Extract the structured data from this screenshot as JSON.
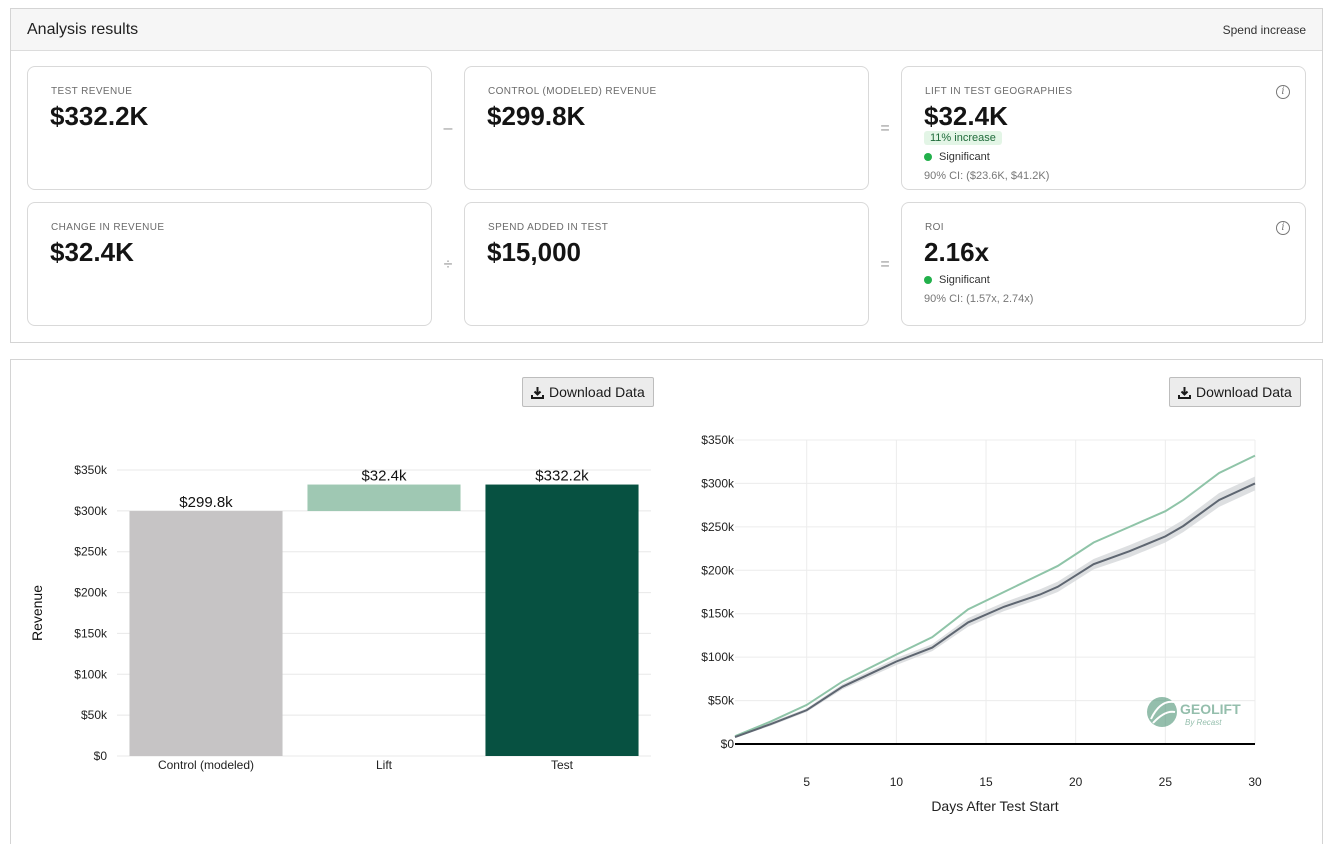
{
  "header": {
    "title": "Analysis results",
    "right_label": "Spend increase"
  },
  "cards": {
    "test_revenue": {
      "label": "TEST REVENUE",
      "value": "$332.2K"
    },
    "control_revenue": {
      "label": "CONTROL (MODELED) REVENUE",
      "value": "$299.8K"
    },
    "lift": {
      "label": "LIFT IN TEST GEOGRAPHIES",
      "value": "$32.4K",
      "badge": "11% increase",
      "significance": "Significant",
      "ci": "90% CI: ($23.6K, $41.2K)"
    },
    "change_revenue": {
      "label": "CHANGE IN REVENUE",
      "value": "$32.4K"
    },
    "spend_added": {
      "label": "SPEND ADDED IN TEST",
      "value": "$15,000"
    },
    "roi": {
      "label": "ROI",
      "value": "2.16x",
      "significance": "Significant",
      "ci": "90% CI: (1.57x, 2.74x)"
    }
  },
  "operators": {
    "minus": "–",
    "divide": "÷",
    "equals": "="
  },
  "download_label": "Download Data",
  "icons": {
    "download": "download-icon",
    "info": "info-icon",
    "significance": "status-dot-icon",
    "logo": "geolift-logo"
  },
  "colors": {
    "control_bar": "#c6c4c5",
    "lift_bar": "#9fc8b3",
    "test_bar": "#075141",
    "test_line": "#8fc4a8",
    "control_line": "#5e6671",
    "ci_band": "#d7d9dc",
    "significant": "#22b04b"
  },
  "logo": {
    "name": "GEOLIFT",
    "tagline": "By Recast"
  },
  "chart_data": [
    {
      "type": "bar",
      "categories": [
        "Control (modeled)",
        "Lift",
        "Test"
      ],
      "bars": [
        {
          "category": "Control (modeled)",
          "base": 0,
          "top": 299.8,
          "label": "$299.8k"
        },
        {
          "category": "Lift",
          "base": 299.8,
          "top": 332.2,
          "label": "$32.4k"
        },
        {
          "category": "Test",
          "base": 0,
          "top": 332.2,
          "label": "$332.2k"
        }
      ],
      "ylabel": "Revenue",
      "ylim": [
        0,
        350
      ],
      "yticks": [
        0,
        50,
        100,
        150,
        200,
        250,
        300,
        350
      ],
      "ytick_labels": [
        "$0",
        "$50k",
        "$100k",
        "$150k",
        "$200k",
        "$250k",
        "$300k",
        "$350k"
      ],
      "grid": true
    },
    {
      "type": "line",
      "xlabel": "Days After Test Start",
      "ylabel": "",
      "xlim": [
        1,
        30
      ],
      "ylim": [
        0,
        350
      ],
      "xticks": [
        5,
        10,
        15,
        20,
        25,
        30
      ],
      "yticks": [
        0,
        50,
        100,
        150,
        200,
        250,
        300,
        350
      ],
      "ytick_labels": [
        "$0",
        "$50k",
        "$100k",
        "$150k",
        "$200k",
        "$250k",
        "$300k",
        "$350k"
      ],
      "grid": true,
      "series": [
        {
          "key": "test",
          "x": [
            1,
            3,
            5,
            7,
            10,
            12,
            14,
            16,
            18,
            19,
            21,
            23,
            25,
            26,
            28,
            30
          ],
          "y": [
            9,
            26,
            45,
            72,
            103,
            123,
            155,
            175,
            195,
            205,
            232,
            250,
            268,
            281,
            312,
            332
          ]
        },
        {
          "key": "control",
          "x": [
            1,
            3,
            5,
            7,
            10,
            12,
            14,
            16,
            18,
            19,
            21,
            23,
            25,
            26,
            28,
            30
          ],
          "y": [
            8,
            23,
            39,
            66,
            95,
            111,
            140,
            158,
            172,
            181,
            207,
            222,
            239,
            251,
            281,
            300
          ],
          "ci_low": [
            7,
            21,
            37,
            63,
            91,
            107,
            135,
            153,
            167,
            175,
            201,
            215,
            232,
            244,
            273,
            292
          ],
          "ci_high": [
            9,
            25,
            41,
            69,
            99,
            115,
            145,
            163,
            178,
            187,
            213,
            229,
            246,
            258,
            289,
            308
          ]
        }
      ]
    }
  ]
}
